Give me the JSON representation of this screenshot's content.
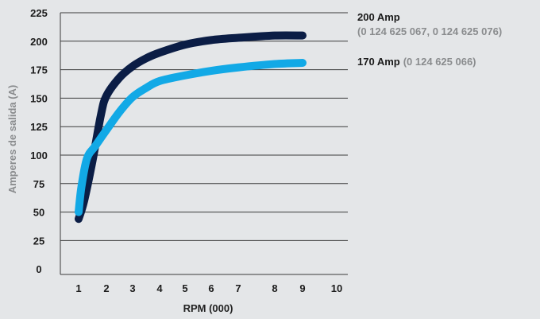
{
  "chart_data": {
    "type": "line",
    "title": "",
    "xlabel": "RPM (000)",
    "ylabel": "Amperes de salida (A)",
    "x_ticks": [
      "1",
      "2",
      "3",
      "4",
      "5",
      "6",
      "7",
      "8",
      "9",
      "10"
    ],
    "y_ticks": [
      "0",
      "25",
      "50",
      "75",
      "100",
      "125",
      "150",
      "175",
      "200",
      "225"
    ],
    "xlim": [
      1,
      10
    ],
    "ylim": [
      0,
      225
    ],
    "grid": "horizontal",
    "legend_placement": "right",
    "series": [
      {
        "name": "200 Amp",
        "codes": "(0 124 625 067, 0 124 625 076)",
        "color": "#0b1d45",
        "x": [
          1.0,
          1.2,
          1.5,
          1.8,
          2.0,
          2.5,
          3.0,
          3.5,
          4.0,
          5.0,
          6.0,
          7.0,
          8.0,
          9.0
        ],
        "y": [
          44,
          60,
          95,
          135,
          152,
          168,
          178,
          185,
          190,
          197,
          201,
          203,
          205,
          205
        ]
      },
      {
        "name": "170 Amp",
        "codes": "(0 124 625 066)",
        "color": "#12a9e6",
        "x": [
          1.0,
          1.1,
          1.3,
          1.6,
          2.0,
          2.5,
          3.0,
          3.5,
          4.0,
          5.0,
          6.0,
          7.0,
          8.0,
          9.0
        ],
        "y": [
          50,
          72,
          97,
          108,
          122,
          138,
          151,
          159,
          165,
          170,
          174,
          177,
          180,
          181
        ]
      }
    ]
  }
}
